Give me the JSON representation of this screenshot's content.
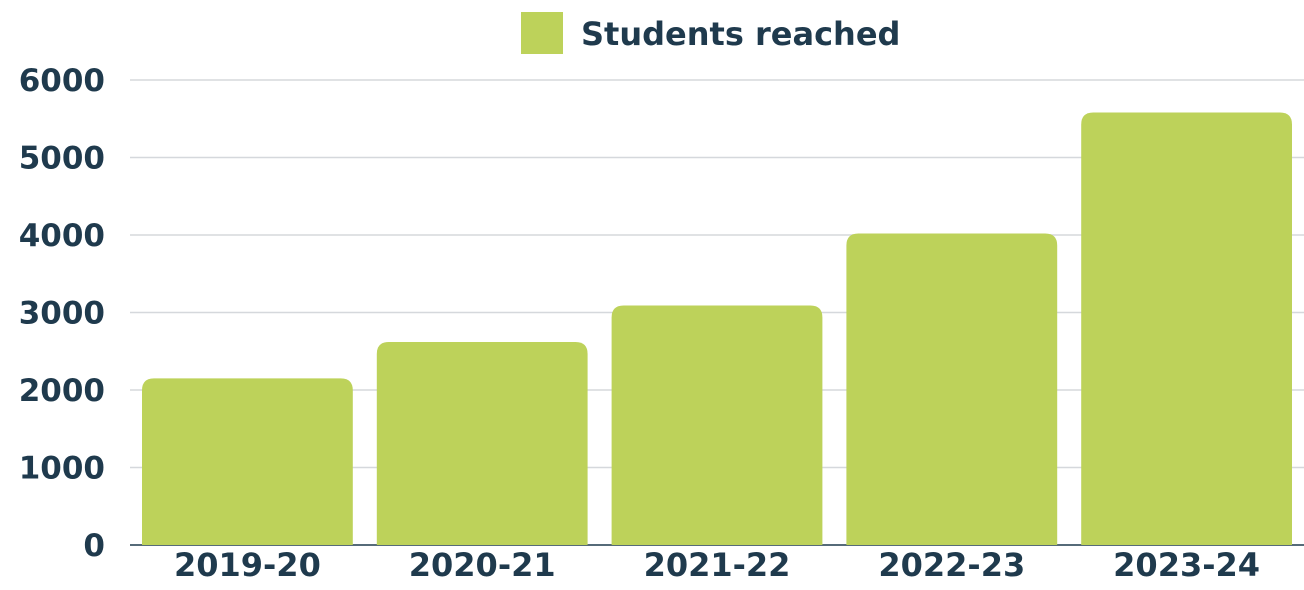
{
  "chart_data": {
    "type": "bar",
    "title": "",
    "xlabel": "",
    "ylabel": "",
    "categories": [
      "2019-20",
      "2020-21",
      "2021-22",
      "2022-23",
      "2023-24"
    ],
    "series": [
      {
        "name": "Students reached",
        "values": [
          2150,
          2620,
          3090,
          4020,
          5580
        ],
        "color": "#bdd25a"
      }
    ],
    "ylim": [
      0,
      6000
    ],
    "yticks": [
      0,
      1000,
      2000,
      3000,
      4000,
      5000,
      6000
    ],
    "grid": true,
    "legend_position": "top-center"
  },
  "colors": {
    "text": "#1f3a4d",
    "grid": "#d5d8dc"
  }
}
